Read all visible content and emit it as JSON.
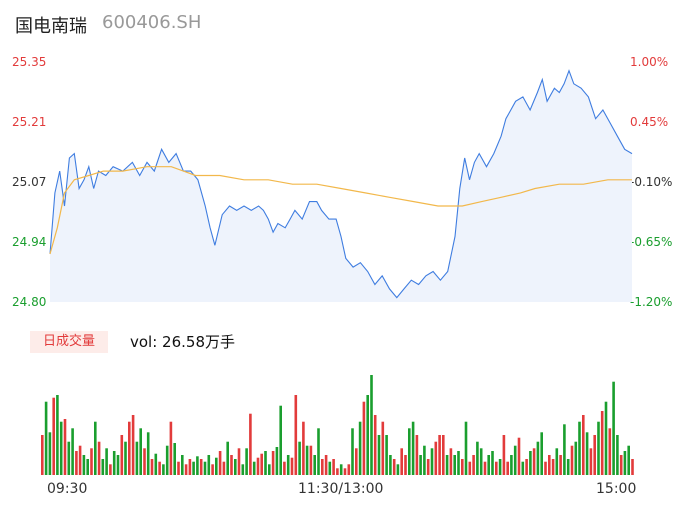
{
  "header": {
    "name": "国电南瑞",
    "code": "600406.SH"
  },
  "price_axis": {
    "labels": [
      "25.35",
      "25.21",
      "25.07",
      "24.94",
      "24.80"
    ]
  },
  "pct_axis": {
    "labels": [
      "1.00%",
      "0.45%",
      "-0.10%",
      "-0.65%",
      "-1.20%"
    ]
  },
  "volume_panel": {
    "badge": "日成交量",
    "vol_text": "vol: 26.58万手"
  },
  "time_axis": {
    "labels": [
      "09:30",
      "11:30/13:00",
      "15:00"
    ]
  },
  "colors": {
    "price_line": "#3f7de0",
    "avg_line": "#f2b84b",
    "up": "#e23b3b",
    "down": "#1a9e2e",
    "fill": "#eef3fc"
  },
  "chart_data": [
    {
      "type": "line",
      "y_range": [
        24.8,
        25.35
      ],
      "x_range_minutes": [
        0,
        240
      ],
      "series": [
        {
          "role": "price",
          "points": [
            [
              0,
              24.91
            ],
            [
              2,
              25.05
            ],
            [
              4,
              25.1
            ],
            [
              6,
              25.02
            ],
            [
              8,
              25.13
            ],
            [
              10,
              25.14
            ],
            [
              12,
              25.06
            ],
            [
              14,
              25.08
            ],
            [
              16,
              25.11
            ],
            [
              18,
              25.06
            ],
            [
              20,
              25.1
            ],
            [
              23,
              25.09
            ],
            [
              26,
              25.11
            ],
            [
              30,
              25.1
            ],
            [
              34,
              25.12
            ],
            [
              37,
              25.09
            ],
            [
              40,
              25.12
            ],
            [
              43,
              25.1
            ],
            [
              46,
              25.15
            ],
            [
              49,
              25.12
            ],
            [
              52,
              25.14
            ],
            [
              55,
              25.1
            ],
            [
              58,
              25.1
            ],
            [
              61,
              25.08
            ],
            [
              64,
              25.02
            ],
            [
              66,
              24.97
            ],
            [
              68,
              24.93
            ],
            [
              71,
              25.0
            ],
            [
              74,
              25.02
            ],
            [
              77,
              25.01
            ],
            [
              80,
              25.02
            ],
            [
              83,
              25.01
            ],
            [
              86,
              25.02
            ],
            [
              88,
              25.01
            ],
            [
              90,
              24.99
            ],
            [
              92,
              24.96
            ],
            [
              94,
              24.98
            ],
            [
              97,
              24.97
            ],
            [
              99,
              24.99
            ],
            [
              101,
              25.01
            ],
            [
              104,
              24.99
            ],
            [
              107,
              25.03
            ],
            [
              110,
              25.03
            ],
            [
              112,
              25.01
            ],
            [
              115,
              24.99
            ],
            [
              118,
              24.99
            ],
            [
              120,
              24.95
            ],
            [
              122,
              24.9
            ],
            [
              125,
              24.88
            ],
            [
              128,
              24.89
            ],
            [
              131,
              24.87
            ],
            [
              134,
              24.84
            ],
            [
              137,
              24.86
            ],
            [
              140,
              24.83
            ],
            [
              143,
              24.81
            ],
            [
              146,
              24.83
            ],
            [
              149,
              24.85
            ],
            [
              152,
              24.84
            ],
            [
              155,
              24.86
            ],
            [
              158,
              24.87
            ],
            [
              161,
              24.85
            ],
            [
              164,
              24.87
            ],
            [
              167,
              24.95
            ],
            [
              169,
              25.06
            ],
            [
              171,
              25.13
            ],
            [
              173,
              25.08
            ],
            [
              175,
              25.12
            ],
            [
              177,
              25.14
            ],
            [
              180,
              25.11
            ],
            [
              183,
              25.14
            ],
            [
              186,
              25.18
            ],
            [
              188,
              25.22
            ],
            [
              190,
              25.24
            ],
            [
              192,
              25.26
            ],
            [
              195,
              25.27
            ],
            [
              198,
              25.24
            ],
            [
              201,
              25.28
            ],
            [
              203,
              25.31
            ],
            [
              205,
              25.26
            ],
            [
              208,
              25.29
            ],
            [
              210,
              25.28
            ],
            [
              212,
              25.3
            ],
            [
              214,
              25.33
            ],
            [
              216,
              25.3
            ],
            [
              219,
              25.29
            ],
            [
              222,
              25.27
            ],
            [
              225,
              25.22
            ],
            [
              228,
              25.24
            ],
            [
              231,
              25.21
            ],
            [
              234,
              25.18
            ],
            [
              237,
              25.15
            ],
            [
              240,
              25.14
            ]
          ]
        },
        {
          "role": "average",
          "points": [
            [
              0,
              24.91
            ],
            [
              3,
              24.97
            ],
            [
              6,
              25.05
            ],
            [
              10,
              25.08
            ],
            [
              16,
              25.09
            ],
            [
              22,
              25.1
            ],
            [
              30,
              25.1
            ],
            [
              40,
              25.11
            ],
            [
              50,
              25.11
            ],
            [
              55,
              25.1
            ],
            [
              60,
              25.09
            ],
            [
              70,
              25.09
            ],
            [
              80,
              25.08
            ],
            [
              90,
              25.08
            ],
            [
              100,
              25.07
            ],
            [
              110,
              25.07
            ],
            [
              120,
              25.06
            ],
            [
              130,
              25.05
            ],
            [
              140,
              25.04
            ],
            [
              150,
              25.03
            ],
            [
              160,
              25.02
            ],
            [
              170,
              25.02
            ],
            [
              178,
              25.03
            ],
            [
              186,
              25.04
            ],
            [
              194,
              25.05
            ],
            [
              200,
              25.06
            ],
            [
              210,
              25.07
            ],
            [
              220,
              25.07
            ],
            [
              230,
              25.08
            ],
            [
              240,
              25.08
            ]
          ]
        }
      ]
    },
    {
      "type": "bar",
      "x_range_minutes": [
        0,
        240
      ],
      "volumes": [
        30,
        55,
        32,
        58,
        60,
        40,
        42,
        25,
        35,
        18,
        22,
        15,
        12,
        20,
        40,
        25,
        12,
        20,
        8,
        18,
        15,
        30,
        25,
        40,
        45,
        25,
        35,
        20,
        32,
        12,
        16,
        10,
        8,
        22,
        40,
        24,
        10,
        15,
        8,
        12,
        10,
        14,
        12,
        10,
        15,
        8,
        13,
        18,
        10,
        25,
        15,
        12,
        20,
        8,
        20,
        46,
        10,
        13,
        16,
        18,
        8,
        18,
        21,
        52,
        10,
        15,
        13,
        60,
        25,
        40,
        22,
        22,
        15,
        35,
        12,
        15,
        10,
        12,
        5,
        8,
        5,
        8,
        35,
        20,
        40,
        55,
        60,
        75,
        45,
        30,
        40,
        30,
        15,
        12,
        8,
        20,
        15,
        35,
        40,
        30,
        15,
        22,
        12,
        20,
        25,
        30,
        30,
        15,
        20,
        15,
        18,
        12,
        40,
        10,
        15,
        25,
        20,
        10,
        15,
        18,
        10,
        12,
        30,
        10,
        15,
        22,
        28,
        10,
        12,
        18,
        20,
        25,
        32,
        10,
        15,
        12,
        20,
        15,
        38,
        12,
        22,
        25,
        40,
        45,
        32,
        20,
        30,
        40,
        48,
        55,
        35,
        70,
        30,
        15,
        18,
        22,
        12
      ],
      "directions": "udduddudduuddududdudduduuddudududdududuuddudduduudududduduuddudduduudududduuduuduudududdududduduuddudduduuududduduuddudduduuddudududduuududdudduduudud"
    }
  ]
}
